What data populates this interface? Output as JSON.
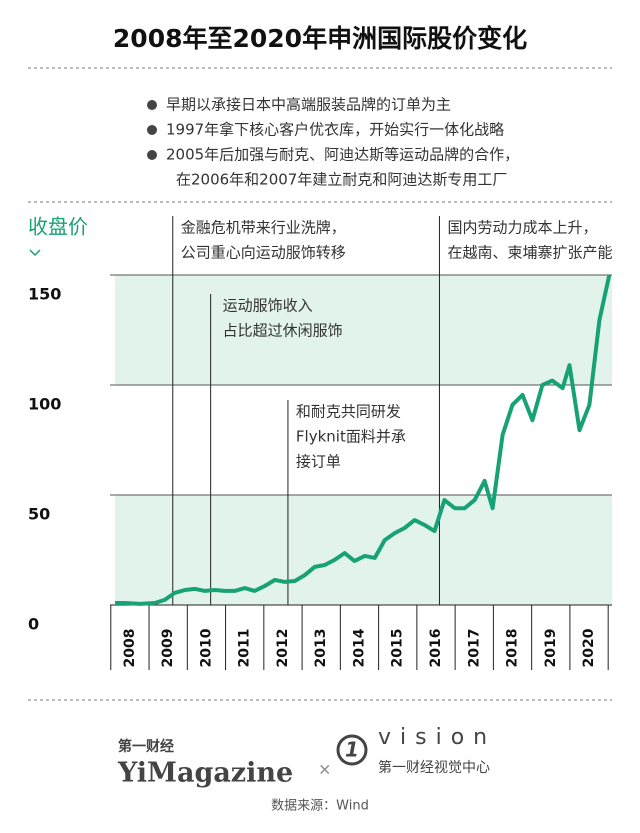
{
  "title": "2008年至2020年申洲国际股价变化",
  "notes": [
    [
      "早期以承接日本中高端服装品牌的订单为主"
    ],
    [
      "1997年拿下核心客户优衣库，开始实行一体化战略"
    ],
    [
      "2005年后加强与耐克、阿迪达斯等运动品牌的合作，",
      "在2006年和2007年建立耐克和阿迪达斯专用工厂"
    ]
  ],
  "chart_data": {
    "type": "line",
    "y_label": "收盘价",
    "color": "#17a276",
    "band_color": "#e2f3eb",
    "grid": true,
    "x": [
      2007.61,
      2007.87,
      2008.26,
      2008.65,
      2008.91,
      2009.17,
      2009.44,
      2009.7,
      2009.96,
      2010.22,
      2010.48,
      2010.74,
      2011.0,
      2011.26,
      2011.52,
      2011.79,
      2012.05,
      2012.31,
      2012.57,
      2012.83,
      2013.09,
      2013.35,
      2013.61,
      2013.87,
      2014.14,
      2014.4,
      2014.66,
      2014.92,
      2015.18,
      2015.44,
      2015.7,
      2015.96,
      2016.22,
      2016.49,
      2016.75,
      2017.01,
      2017.27,
      2017.48,
      2017.74,
      2018.0,
      2018.26,
      2018.52,
      2018.78,
      2019.04,
      2019.31,
      2019.49,
      2019.75,
      2020.01,
      2020.27,
      2020.53
    ],
    "values": [
      0.9,
      0.9,
      0.5,
      0.9,
      2.3,
      5.5,
      6.8,
      7.3,
      6.4,
      6.8,
      6.4,
      6.4,
      7.7,
      6.4,
      8.6,
      11.4,
      10.5,
      10.9,
      13.6,
      17.3,
      18.2,
      20.5,
      23.6,
      20,
      22.3,
      21.4,
      29.5,
      32.7,
      35,
      38.6,
      36.4,
      33.6,
      47.7,
      44,
      44,
      47.7,
      56.4,
      44,
      77.3,
      91,
      95.5,
      84,
      100,
      102,
      98.6,
      109,
      79.5,
      91,
      129.5,
      150
    ],
    "xlim": [
      2007.61,
      2020.6
    ],
    "ylim": [
      0,
      150
    ],
    "xticks": [
      2008,
      2009,
      2010,
      2011,
      2012,
      2013,
      2014,
      2015,
      2016,
      2017,
      2018,
      2019,
      2020
    ],
    "yticks": [
      0,
      50,
      100,
      150
    ],
    "annotations": [
      {
        "x": 2009.12,
        "lines": [
          "金融危机带来行业洗牌，",
          "公司重心向运动服饰转移"
        ]
      },
      {
        "x": 2010.11,
        "lines": [
          "运动服饰收入",
          "占比超过休闲服饰"
        ]
      },
      {
        "x": 2012.13,
        "lines": [
          "和耐克共同研发",
          "Flyknit面料并承",
          "接订单"
        ]
      },
      {
        "x": 2016.09,
        "lines": [
          "国内劳动力成本上升，",
          "在越南、柬埔寨扩张产能"
        ]
      }
    ]
  },
  "footer": {
    "brand_cn": "第一财经",
    "brand_en": "YiMagazine",
    "times": "×",
    "logo_mark": "1",
    "vision": "vision",
    "vision_cn": "第一财经视觉中心"
  },
  "source": "数据来源：Wind"
}
